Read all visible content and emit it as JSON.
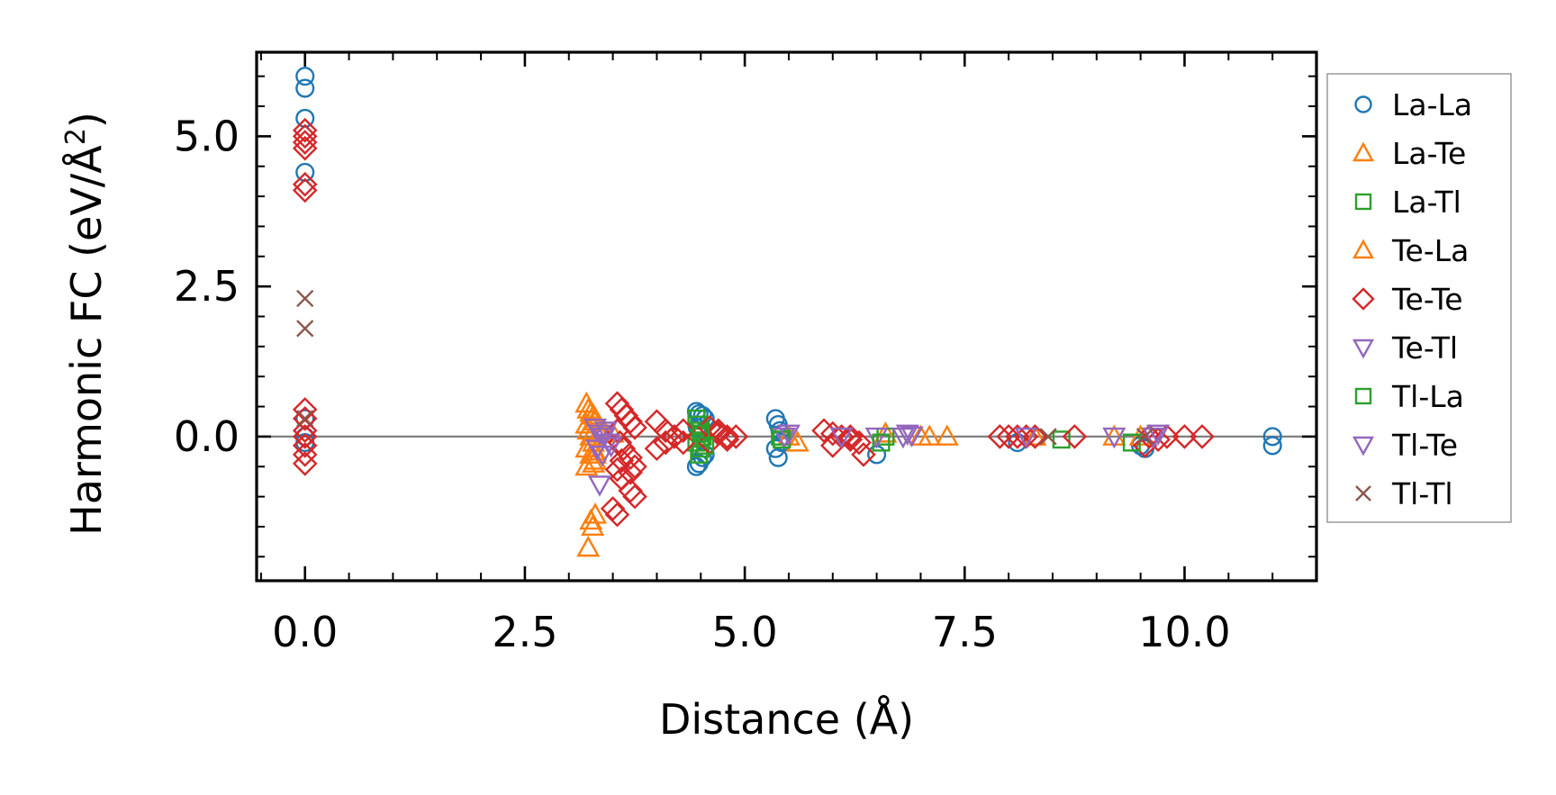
{
  "chart_data": {
    "type": "scatter",
    "xlabel": "Distance (Å)",
    "ylabel_main": "Harmonic FC (eV/Å",
    "ylabel_sup": "2",
    "ylabel_close": ")",
    "xlim": [
      -0.55,
      11.5
    ],
    "ylim": [
      -2.4,
      6.4
    ],
    "xticks": [
      0.0,
      2.5,
      5.0,
      7.5,
      10.0
    ],
    "xtick_labels": [
      "0.0",
      "2.5",
      "5.0",
      "7.5",
      "10.0"
    ],
    "yticks": [
      0.0,
      2.5,
      5.0
    ],
    "ytick_labels": [
      "0.0",
      "2.5",
      "5.0"
    ],
    "x_minor_step": 0.5,
    "y_minor_step": 0.5,
    "zero_line": true,
    "grid": false,
    "legend_position": "right-outside",
    "series": [
      {
        "name": "La-La",
        "marker": "circle",
        "color": "#1f77b4",
        "x": [
          0,
          0,
          0,
          0,
          0,
          0,
          0,
          4.45,
          4.48,
          4.52,
          4.55,
          4.45,
          4.48,
          4.52,
          4.55,
          4.5,
          4.46,
          5.35,
          5.38,
          5.4,
          5.35,
          5.38,
          5.42,
          6.5,
          8.1,
          9.5,
          9.55,
          11.0,
          11.0
        ],
        "y": [
          6.0,
          5.8,
          5.3,
          4.4,
          0.3,
          0.0,
          -0.1,
          0.42,
          0.38,
          0.35,
          0.3,
          -0.5,
          -0.45,
          -0.35,
          -0.3,
          0.05,
          0.15,
          0.3,
          0.2,
          0.1,
          -0.2,
          -0.35,
          -0.1,
          -0.3,
          -0.1,
          -0.15,
          -0.2,
          0.0,
          -0.15
        ]
      },
      {
        "name": "La-Te",
        "marker": "triangle-up",
        "color": "#ff7f0e",
        "x": [
          3.2,
          3.22,
          3.25,
          3.28,
          3.3,
          3.2,
          3.22,
          3.25,
          3.28,
          3.2,
          3.25,
          3.3,
          3.2,
          3.28,
          3.3,
          3.25,
          3.3,
          3.27,
          3.22,
          3.4,
          3.5,
          5.5,
          5.6,
          6.6,
          7.0,
          7.1,
          7.3,
          8.3,
          9.2,
          9.5
        ],
        "y": [
          0.55,
          0.45,
          0.4,
          0.35,
          0.3,
          0.2,
          0.1,
          0.0,
          -0.1,
          -0.2,
          -0.3,
          -0.4,
          -0.5,
          -0.45,
          -0.25,
          -1.4,
          -1.3,
          -1.5,
          -1.85,
          0.1,
          0.05,
          0.0,
          -0.1,
          0.05,
          0.0,
          0.0,
          0.0,
          0.0,
          0.0,
          0.0
        ]
      },
      {
        "name": "La-Tl",
        "marker": "square",
        "color": "#2ca02c",
        "x": [
          4.45,
          4.48,
          4.5,
          4.52,
          4.45,
          4.5,
          4.48,
          5.4,
          6.6,
          8.6
        ],
        "y": [
          0.3,
          0.2,
          0.1,
          0.0,
          -0.1,
          -0.2,
          -0.3,
          0.0,
          0.0,
          -0.05
        ]
      },
      {
        "name": "Te-La",
        "marker": "triangle-up",
        "color": "#ff7f0e",
        "x": [
          3.3,
          3.35,
          3.3
        ],
        "y": [
          0.25,
          0.05,
          -0.3
        ]
      },
      {
        "name": "Te-Te",
        "marker": "diamond",
        "color": "#d62728",
        "x": [
          0,
          0,
          0,
          0,
          0,
          0,
          0,
          0,
          0,
          0,
          0,
          0,
          0,
          3.55,
          3.6,
          3.65,
          3.7,
          3.75,
          3.58,
          3.62,
          3.7,
          3.75,
          3.55,
          3.6,
          3.7,
          3.5,
          3.55,
          3.75,
          3.7,
          3.6,
          3.55,
          4.0,
          4.1,
          4.2,
          4.3,
          4.0,
          4.1,
          4.2,
          4.3,
          4.6,
          4.7,
          4.8,
          4.9,
          4.6,
          4.7,
          4.8,
          5.9,
          6.0,
          6.1,
          6.2,
          6.3,
          6.35,
          6.0,
          6.2,
          7.9,
          8.0,
          8.1,
          8.2,
          8.3,
          8.75,
          9.6,
          9.7,
          9.8,
          10.0,
          10.2,
          9.55
        ],
        "y": [
          5.1,
          5.0,
          4.9,
          4.8,
          4.2,
          4.1,
          0.45,
          0.3,
          0.1,
          0.0,
          -0.15,
          -0.3,
          -0.45,
          0.55,
          0.45,
          0.35,
          0.25,
          0.15,
          -0.1,
          -0.2,
          -0.35,
          -0.5,
          -0.55,
          -0.7,
          -0.9,
          -1.2,
          -1.3,
          -1.0,
          -0.6,
          -0.4,
          0.1,
          0.25,
          0.1,
          0.0,
          -0.1,
          -0.2,
          -0.1,
          0.0,
          0.1,
          0.15,
          0.05,
          -0.05,
          0.0,
          -0.1,
          0.1,
          0.0,
          0.1,
          0.05,
          0.0,
          -0.05,
          -0.1,
          -0.3,
          -0.15,
          0.0,
          0.0,
          0.0,
          0.0,
          0.0,
          0.0,
          0.0,
          0.0,
          -0.05,
          0.0,
          0.0,
          0.0,
          -0.15
        ]
      },
      {
        "name": "Te-Tl",
        "marker": "triangle-down",
        "color": "#9467bd",
        "x": [
          3.3,
          3.35,
          3.4,
          3.45,
          3.32,
          3.38,
          3.35,
          5.45,
          6.1,
          6.5,
          6.8,
          6.85,
          8.2,
          9.2,
          9.7
        ],
        "y": [
          0.15,
          0.05,
          0.0,
          -0.1,
          -0.2,
          -0.3,
          -0.8,
          0.0,
          0.0,
          0.0,
          0.0,
          0.05,
          0.0,
          0.0,
          0.05
        ]
      },
      {
        "name": "Tl-La",
        "marker": "square",
        "color": "#2ca02c",
        "x": [
          4.5,
          4.55,
          5.42,
          6.55,
          9.4
        ],
        "y": [
          0.05,
          -0.15,
          -0.05,
          -0.1,
          -0.1
        ]
      },
      {
        "name": "Tl-Te",
        "marker": "triangle-down",
        "color": "#9467bd",
        "x": [
          3.42,
          3.48,
          5.5,
          6.9,
          9.65
        ],
        "y": [
          0.1,
          -0.15,
          0.05,
          0.02,
          0.0
        ]
      },
      {
        "name": "Tl-Tl",
        "marker": "x",
        "color": "#8c564b",
        "x": [
          0,
          0,
          0,
          8.45,
          9.55
        ],
        "y": [
          2.3,
          1.8,
          0.3,
          0.0,
          0.0
        ]
      }
    ]
  }
}
